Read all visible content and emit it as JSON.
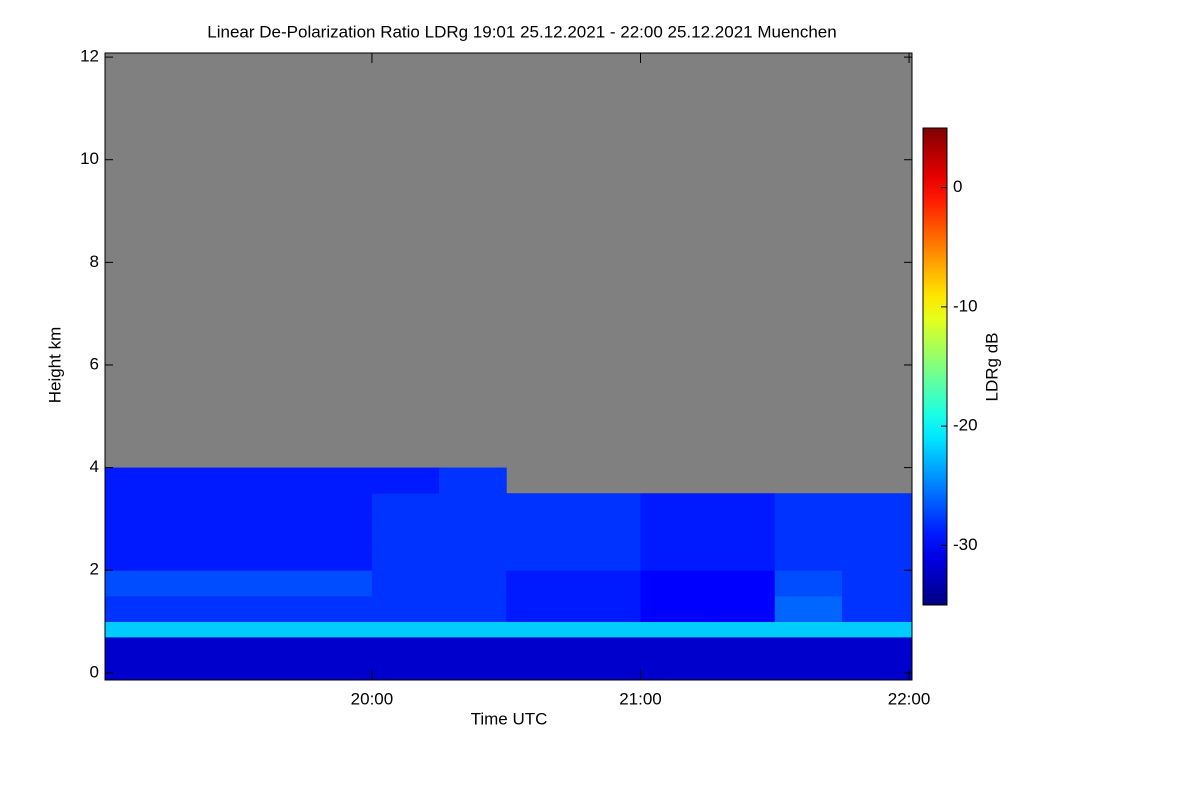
{
  "chart_data": {
    "type": "heatmap",
    "title": "Linear De-Polarization Ratio LDRg   19:01 25.12.2021 - 22:00 25.12.2021 Muenchen",
    "x_label": "Time UTC",
    "y_label": "Height km",
    "colorbar_label": "LDRg dB",
    "x_edges": [
      19.006,
      19.25,
      19.5,
      19.75,
      20.0,
      20.25,
      20.5,
      20.75,
      21.0,
      21.25,
      21.5,
      21.75,
      22.011
    ],
    "y_edges": [
      -0.14,
      0.7,
      1.0,
      1.5,
      2.0,
      2.5,
      3.0,
      3.5,
      4.0,
      4.5,
      12.08
    ],
    "z": [
      [
        -32,
        -22,
        -28,
        -27,
        -29,
        -29,
        -29,
        -29,
        null,
        null
      ],
      [
        -32,
        -22,
        -28,
        -27,
        -29,
        -29,
        -29,
        -29,
        null,
        null
      ],
      [
        -32,
        -22,
        -28,
        -27,
        -29,
        -29,
        -29,
        -29,
        null,
        null
      ],
      [
        -32,
        -22,
        -28,
        -27,
        -29,
        -29,
        -29,
        -29,
        null,
        null
      ],
      [
        -32,
        -22,
        -28,
        -28,
        -28,
        -28,
        -28,
        -29,
        null,
        null
      ],
      [
        -32,
        -22,
        -28,
        -28,
        -28,
        -28,
        -28,
        -28,
        null,
        null
      ],
      [
        -32,
        -22,
        -29,
        -29,
        -28,
        -28,
        -28,
        null,
        null,
        null
      ],
      [
        -32,
        -22,
        -29,
        -29,
        -28,
        -28,
        -28,
        null,
        null,
        null
      ],
      [
        -32,
        -22,
        -30,
        -30,
        -29,
        -29,
        -29,
        null,
        null,
        null
      ],
      [
        -32,
        -22,
        -30,
        -30,
        -29,
        -29,
        -29,
        null,
        null,
        null
      ],
      [
        -32,
        -22,
        -26,
        -27,
        -28,
        -28,
        -28,
        null,
        null,
        null
      ],
      [
        -32,
        -22,
        -28,
        -28,
        -28,
        -28,
        -28,
        null,
        null,
        null
      ]
    ],
    "xlim": [
      19.006,
      22.011
    ],
    "xticks": [
      {
        "value": 20,
        "label": "20:00"
      },
      {
        "value": 21,
        "label": "21:00"
      },
      {
        "value": 22,
        "label": "22:00"
      }
    ],
    "ylim": [
      -0.14,
      12.08
    ],
    "yticks": [
      0,
      2,
      4,
      6,
      8,
      10,
      12
    ],
    "clim": [
      -35,
      5
    ],
    "cticks": [
      0,
      -10,
      -20,
      -30
    ],
    "colormap": "jet",
    "nan_color": "#808080"
  }
}
